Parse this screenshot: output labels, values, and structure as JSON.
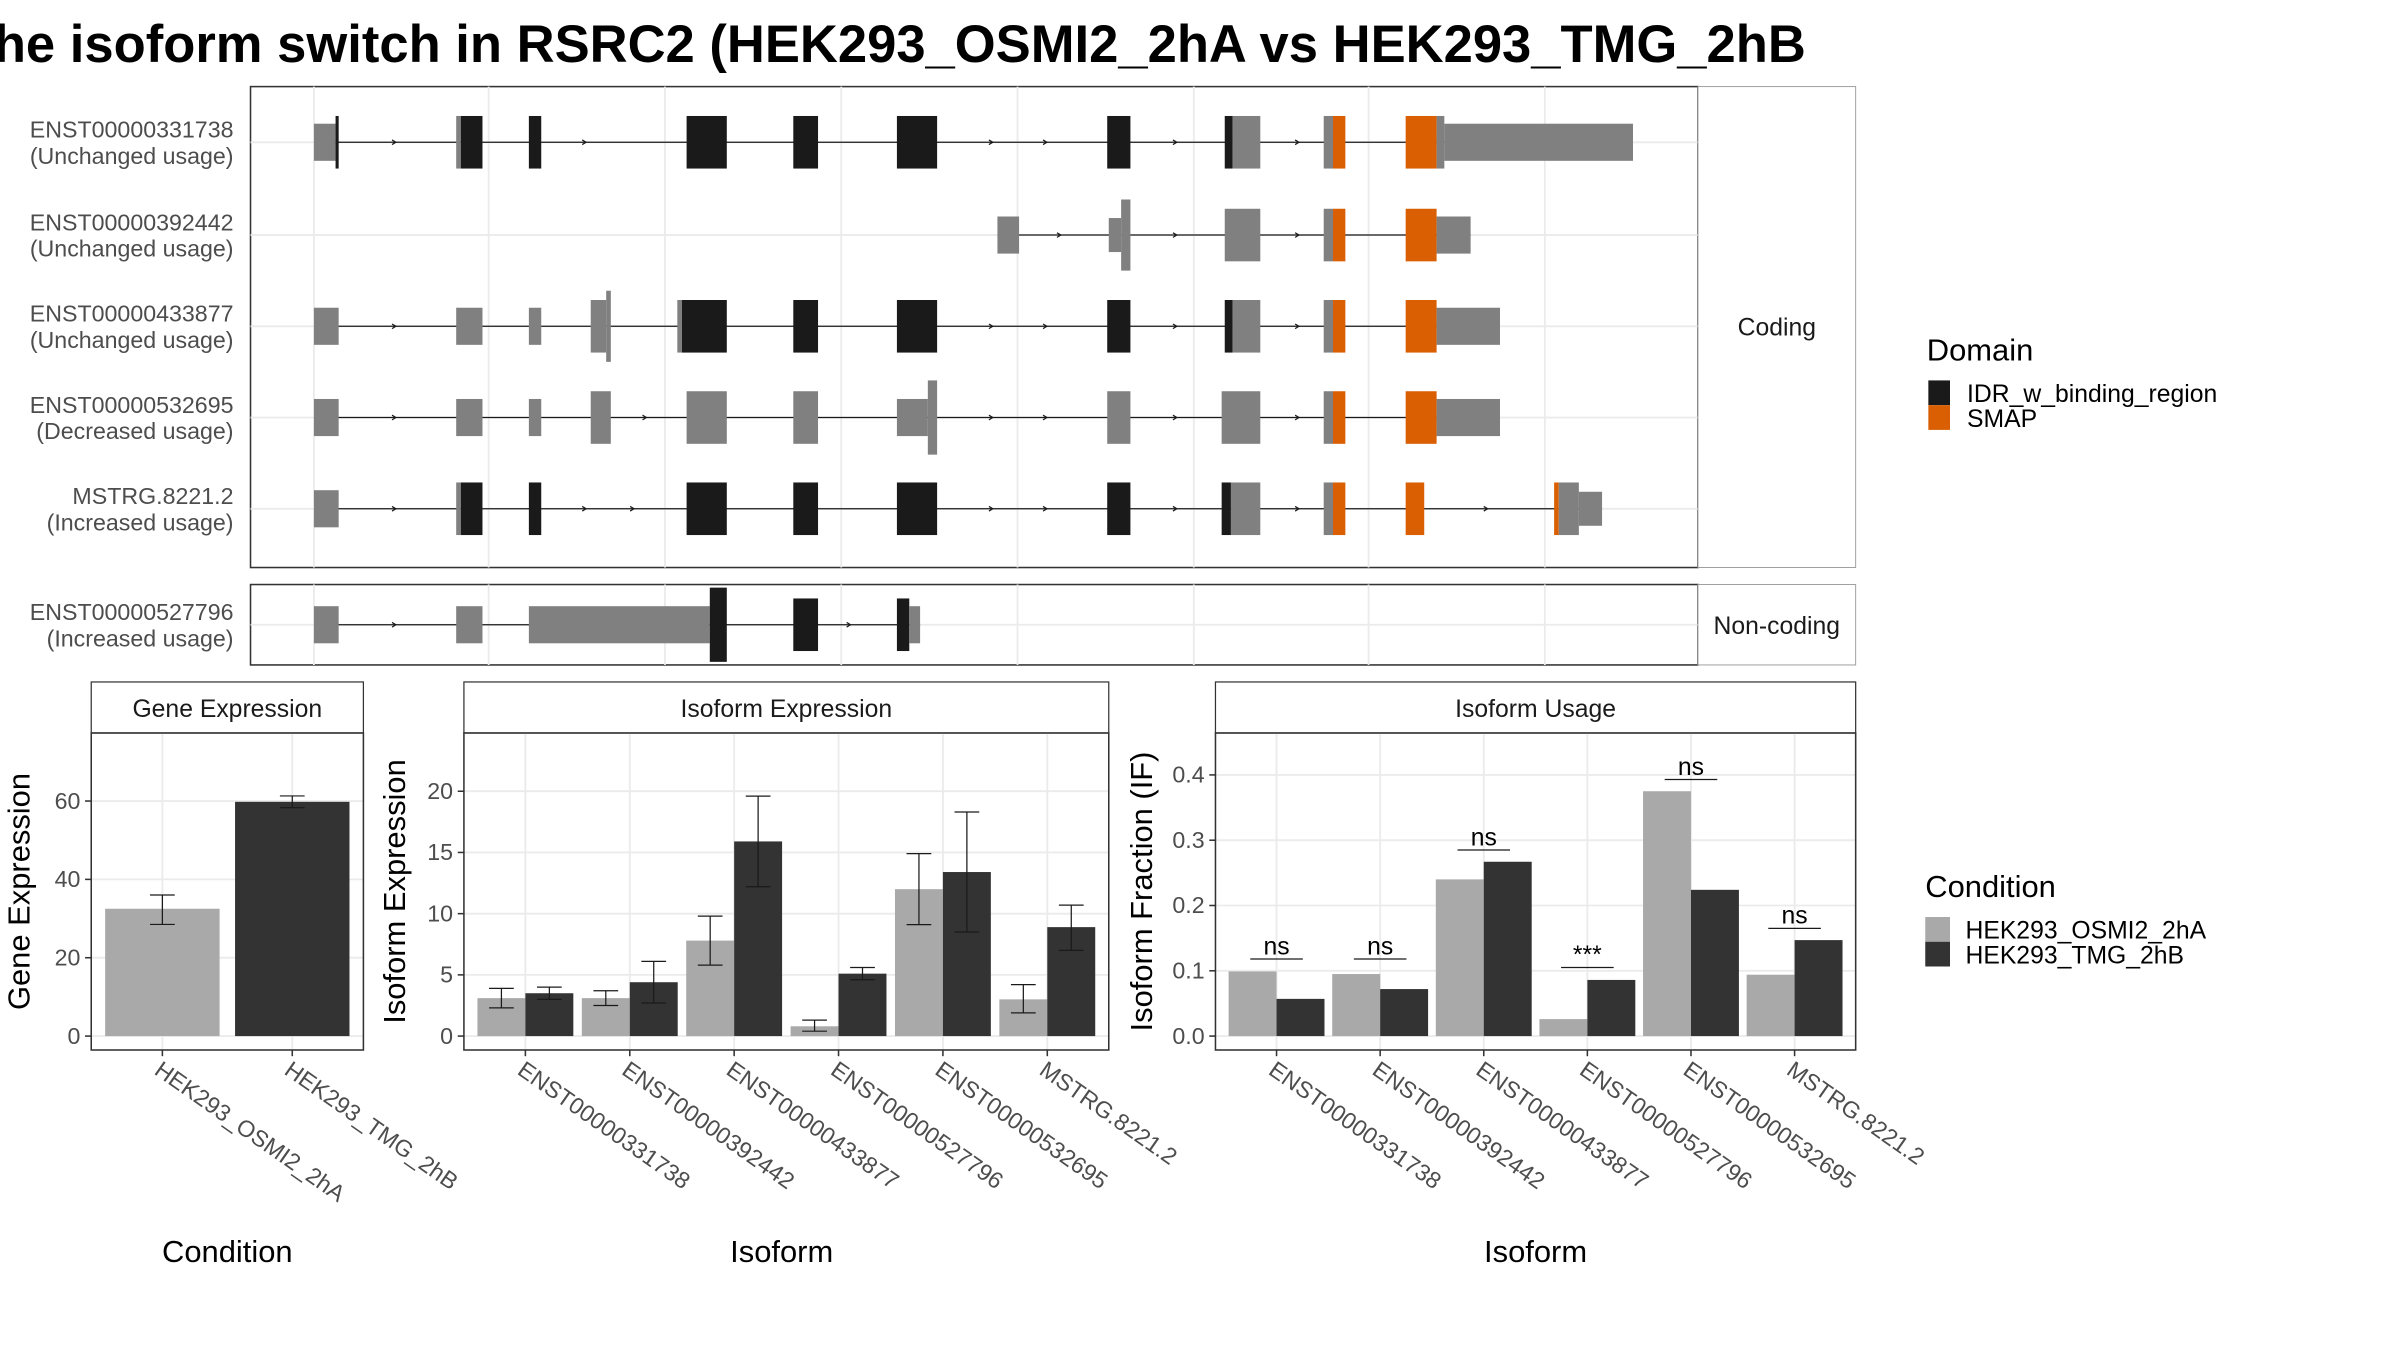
{
  "title": "he isoform switch in RSRC2 (HEK293_OSMI2_2hA vs HEK293_TMG_2hB",
  "colors": {
    "utr": "#808080",
    "cds": "#1a1a1a",
    "smap": "#d95f02",
    "cond_a": "#a9a9a9",
    "cond_b": "#333333",
    "strip_bg": "#ffffff",
    "grid": "#ebebeb"
  },
  "structure": {
    "coding_label": "Coding",
    "noncoding_label": "Non-coding",
    "coding_transcripts": [
      {
        "id": "ENST00000331738",
        "status": "(Unchanged usage)",
        "exons": [
          [
            203,
            217,
            "utr"
          ],
          [
            217,
            219,
            "cds"
          ],
          [
            295,
            298,
            "utr"
          ],
          [
            298,
            312,
            "cds"
          ],
          [
            342,
            350,
            "cds"
          ],
          [
            444,
            470,
            "cds"
          ],
          [
            513,
            529,
            "cds"
          ],
          [
            580,
            606,
            "cds"
          ],
          [
            716,
            731,
            "cds"
          ],
          [
            792,
            797,
            "cds"
          ],
          [
            797,
            815,
            "utr"
          ],
          [
            856,
            862,
            "utr"
          ],
          [
            862,
            870,
            "smap"
          ],
          [
            909,
            929,
            "smap"
          ],
          [
            929,
            934,
            "utr"
          ],
          [
            934,
            1056,
            "utr"
          ]
        ],
        "span": [
          203,
          1056
        ],
        "chev": [
          256,
          379,
          525,
          642,
          677,
          761,
          840
        ]
      },
      {
        "id": "ENST00000392442",
        "status": "(Unchanged usage)",
        "exons": [
          [
            645,
            659,
            "utr"
          ],
          [
            717,
            725,
            "utr"
          ],
          [
            725,
            731,
            "utr"
          ],
          [
            792,
            815,
            "utr"
          ],
          [
            856,
            862,
            "utr"
          ],
          [
            862,
            870,
            "smap"
          ],
          [
            909,
            929,
            "smap"
          ],
          [
            929,
            951,
            "utr"
          ]
        ],
        "span": [
          645,
          951
        ],
        "chev": [
          686,
          761,
          840
        ]
      },
      {
        "id": "ENST00000433877",
        "status": "(Unchanged usage)",
        "exons": [
          [
            203,
            219,
            "utr"
          ],
          [
            295,
            312,
            "utr"
          ],
          [
            342,
            350,
            "utr"
          ],
          [
            382,
            392,
            "utr"
          ],
          [
            392,
            395,
            "utr"
          ],
          [
            438,
            441,
            "utr"
          ],
          [
            441,
            470,
            "cds"
          ],
          [
            513,
            529,
            "cds"
          ],
          [
            580,
            606,
            "cds"
          ],
          [
            716,
            731,
            "cds"
          ],
          [
            792,
            797,
            "cds"
          ],
          [
            797,
            815,
            "utr"
          ],
          [
            856,
            862,
            "utr"
          ],
          [
            862,
            870,
            "smap"
          ],
          [
            909,
            929,
            "smap"
          ],
          [
            929,
            970,
            "utr"
          ]
        ],
        "span": [
          203,
          970
        ],
        "chev": [
          256,
          525,
          642,
          677,
          761,
          840
        ]
      },
      {
        "id": "ENST00000532695",
        "status": "(Decreased usage)",
        "exons": [
          [
            203,
            219,
            "utr"
          ],
          [
            295,
            312,
            "utr"
          ],
          [
            342,
            350,
            "utr"
          ],
          [
            382,
            395,
            "utr"
          ],
          [
            444,
            470,
            "utr"
          ],
          [
            513,
            529,
            "utr"
          ],
          [
            580,
            600,
            "utr"
          ],
          [
            600,
            606,
            "utr"
          ],
          [
            716,
            731,
            "utr"
          ],
          [
            790,
            815,
            "utr"
          ],
          [
            856,
            862,
            "utr"
          ],
          [
            862,
            870,
            "smap"
          ],
          [
            909,
            929,
            "smap"
          ],
          [
            929,
            970,
            "utr"
          ]
        ],
        "span": [
          203,
          970
        ],
        "chev": [
          256,
          418,
          525,
          642,
          677,
          761,
          840
        ]
      },
      {
        "id": "MSTRG.8221.2",
        "status": "(Increased usage)",
        "exons": [
          [
            203,
            219,
            "utr"
          ],
          [
            295,
            298,
            "utr"
          ],
          [
            298,
            312,
            "cds"
          ],
          [
            342,
            350,
            "cds"
          ],
          [
            444,
            470,
            "cds"
          ],
          [
            513,
            529,
            "cds"
          ],
          [
            580,
            606,
            "cds"
          ],
          [
            716,
            731,
            "cds"
          ],
          [
            790,
            796,
            "cds"
          ],
          [
            796,
            815,
            "utr"
          ],
          [
            856,
            862,
            "utr"
          ],
          [
            862,
            870,
            "smap"
          ],
          [
            909,
            921,
            "smap"
          ],
          [
            1005,
            1008,
            "smap"
          ],
          [
            1008,
            1021,
            "utr"
          ],
          [
            1021,
            1036,
            "utr"
          ]
        ],
        "span": [
          203,
          1036
        ],
        "chev": [
          256,
          379,
          410,
          525,
          642,
          677,
          761,
          840,
          962
        ]
      }
    ],
    "noncoding_transcripts": [
      {
        "id": "ENST00000527796",
        "status": "(Increased usage)",
        "exons": [
          [
            203,
            219,
            "utr"
          ],
          [
            295,
            312,
            "utr"
          ],
          [
            342,
            459,
            "utr"
          ],
          [
            459,
            470,
            "cds"
          ],
          [
            513,
            529,
            "cds"
          ],
          [
            580,
            588,
            "cds"
          ],
          [
            588,
            595,
            "utr"
          ]
        ],
        "span": [
          203,
          595
        ],
        "chev": [
          256,
          550
        ]
      }
    ]
  },
  "legend_domain": {
    "title": "Domain",
    "items": [
      {
        "label": "IDR_w_binding_region",
        "color": "#1a1a1a"
      },
      {
        "label": "SMAP",
        "color": "#d95f02"
      }
    ]
  },
  "legend_condition": {
    "title": "Condition",
    "items": [
      {
        "label": "HEK293_OSMI2_2hA",
        "color": "#a9a9a9"
      },
      {
        "label": "HEK293_TMG_2hB",
        "color": "#333333"
      }
    ]
  },
  "chart_data": [
    {
      "type": "bar",
      "panel": "Gene Expression",
      "xlabel": "Condition",
      "ylabel": "Gene Expression",
      "ylim": [
        0,
        75
      ],
      "yticks": [
        0,
        20,
        40,
        60
      ],
      "categories": [
        "HEK293_OSMI2_2hA",
        "HEK293_TMG_2hB"
      ],
      "values": [
        32.5,
        59.8
      ],
      "error": [
        [
          28.5,
          36.0
        ],
        [
          58.3,
          61.3
        ]
      ]
    },
    {
      "type": "bar",
      "panel": "Isoform Expression",
      "xlabel": "Isoform",
      "ylabel": "Isoform Expression",
      "ylim": [
        0,
        24
      ],
      "yticks": [
        0,
        5,
        10,
        15,
        20
      ],
      "categories": [
        "ENST00000331738",
        "ENST00000392442",
        "ENST00000433877",
        "ENST00000527796",
        "ENST00000532695",
        "MSTRG.8221.2"
      ],
      "series": [
        {
          "name": "HEK293_OSMI2_2hA",
          "values": [
            3.1,
            3.1,
            7.8,
            0.8,
            12.0,
            3.0
          ],
          "error": [
            [
              2.3,
              3.9
            ],
            [
              2.5,
              3.7
            ],
            [
              5.8,
              9.8
            ],
            [
              0.4,
              1.3
            ],
            [
              9.1,
              14.9
            ],
            [
              1.9,
              4.2
            ]
          ]
        },
        {
          "name": "HEK293_TMG_2hB",
          "values": [
            3.5,
            4.4,
            15.9,
            5.1,
            13.4,
            8.9
          ],
          "error": [
            [
              3.0,
              4.0
            ],
            [
              2.7,
              6.1
            ],
            [
              12.2,
              19.6
            ],
            [
              4.6,
              5.6
            ],
            [
              8.5,
              18.3
            ],
            [
              7.0,
              10.7
            ]
          ]
        }
      ]
    },
    {
      "type": "bar",
      "panel": "Isoform Usage",
      "xlabel": "Isoform",
      "ylabel": "Isoform Fraction (IF)",
      "ylim": [
        0,
        0.45
      ],
      "yticks": [
        "0.0",
        "0.1",
        "0.2",
        "0.3",
        "0.4"
      ],
      "categories": [
        "ENST00000331738",
        "ENST00000392442",
        "ENST00000433877",
        "ENST00000527796",
        "ENST00000532695",
        "MSTRG.8221.2"
      ],
      "series": [
        {
          "name": "HEK293_OSMI2_2hA",
          "values": [
            0.099,
            0.095,
            0.24,
            0.026,
            0.375,
            0.094
          ]
        },
        {
          "name": "HEK293_TMG_2hB",
          "values": [
            0.057,
            0.072,
            0.267,
            0.086,
            0.224,
            0.147
          ]
        }
      ],
      "significance": [
        "ns",
        "ns",
        "ns",
        "***",
        "ns",
        "ns"
      ],
      "sig_y": [
        0.118,
        0.118,
        0.285,
        0.105,
        0.393,
        0.165
      ]
    }
  ]
}
